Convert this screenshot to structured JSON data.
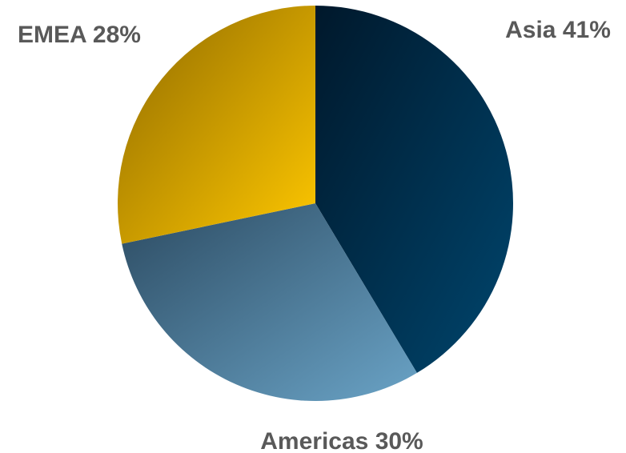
{
  "chart_data": {
    "type": "pie",
    "title": "",
    "categories": [
      "Asia",
      "Americas",
      "EMEA"
    ],
    "values": [
      41,
      30,
      28
    ],
    "unit": "%",
    "labels": [
      "Asia 41%",
      "Americas 30%",
      "EMEA 28%"
    ],
    "colors": [
      "#003a5c",
      "#5a8fae",
      "#f2c200"
    ],
    "legend": "none"
  }
}
